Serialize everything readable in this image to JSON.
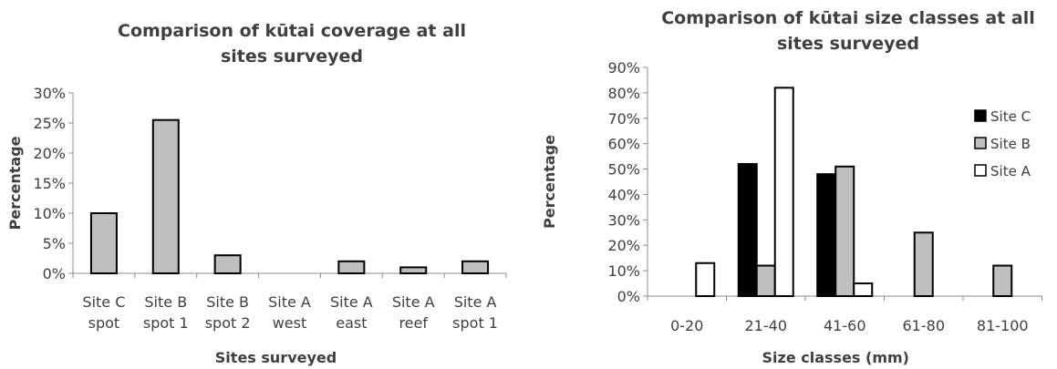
{
  "chart_data": [
    {
      "type": "bar",
      "title_lines": [
        "Comparison of kūtai coverage at all",
        "sites surveyed"
      ],
      "xlabel": "Sites surveyed",
      "ylabel": "Percentage",
      "ylim": [
        0,
        30
      ],
      "yticks": [
        "0%",
        "5%",
        "10%",
        "15%",
        "20%",
        "25%",
        "30%"
      ],
      "categories": [
        [
          "Site C",
          "spot"
        ],
        [
          "Site B",
          "spot 1"
        ],
        [
          "Site B",
          "spot 2"
        ],
        [
          "Site A",
          "west"
        ],
        [
          "Site A",
          "east"
        ],
        [
          "Site A",
          "reef"
        ],
        [
          "Site A",
          "spot 1"
        ]
      ],
      "values": [
        10,
        25.5,
        3,
        0,
        2,
        1,
        2
      ],
      "bar_color": "#bfbfbf",
      "grid": false
    },
    {
      "type": "bar",
      "title_lines": [
        "Comparison of kūtai size classes at all",
        "sites surveyed"
      ],
      "xlabel": "Size classes (mm)",
      "ylabel": "Percentage",
      "ylim": [
        0,
        90
      ],
      "yticks": [
        "0%",
        "10%",
        "20%",
        "30%",
        "40%",
        "50%",
        "60%",
        "70%",
        "80%",
        "90%"
      ],
      "categories": [
        "0-20",
        "21-40",
        "41-60",
        "61-80",
        "81-100"
      ],
      "series": [
        {
          "name": "Site C",
          "color": "#000000",
          "values": [
            0,
            52,
            48,
            0,
            0
          ]
        },
        {
          "name": "Site B",
          "color": "#bfbfbf",
          "values": [
            0,
            12,
            51,
            25,
            12
          ]
        },
        {
          "name": "Site A",
          "color": "#ffffff",
          "values": [
            13,
            82,
            5,
            0,
            0
          ]
        }
      ],
      "legend_position": "right",
      "grid": false
    }
  ]
}
